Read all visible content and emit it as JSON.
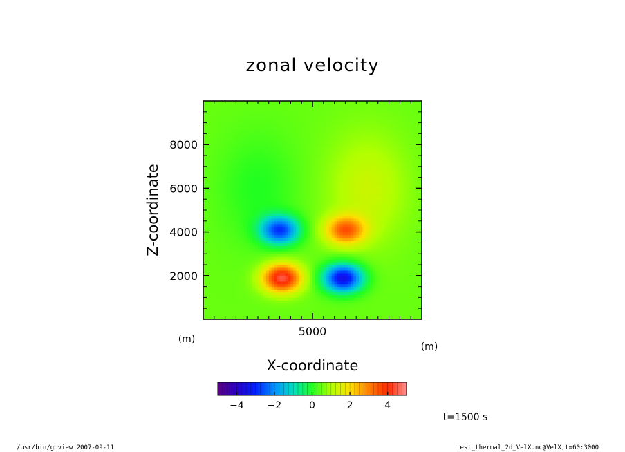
{
  "chart_data": {
    "type": "heatmap",
    "title": "zonal velocity",
    "xlabel": "X-coordinate",
    "ylabel": "Z-coordinate",
    "xunit": "(m)",
    "yunit": "(m)",
    "x_ticks": [
      5000
    ],
    "y_ticks": [
      2000,
      4000,
      6000,
      8000
    ],
    "xlim": [
      0,
      10000
    ],
    "ylim": [
      0,
      10000
    ],
    "colorbar": {
      "ticks": [
        -4,
        -2,
        0,
        2,
        4
      ],
      "range": [
        -5,
        5
      ],
      "colormap": "rainbow"
    },
    "field_features": [
      {
        "kind": "negative",
        "x": 3500,
        "z": 4100,
        "value": -3.2
      },
      {
        "kind": "positive",
        "x": 6500,
        "z": 4100,
        "value": 2.8
      },
      {
        "kind": "positive",
        "x": 3600,
        "z": 1900,
        "value": 4.0
      },
      {
        "kind": "negative",
        "x": 6400,
        "z": 1900,
        "value": -4.0
      }
    ],
    "time_label": "t=1500 s"
  },
  "footer": {
    "left": "/usr/bin/gpview  2007-09-11",
    "right": "test_thermal_2d_VelX.nc@VelX,t=60:3000"
  },
  "icons": []
}
